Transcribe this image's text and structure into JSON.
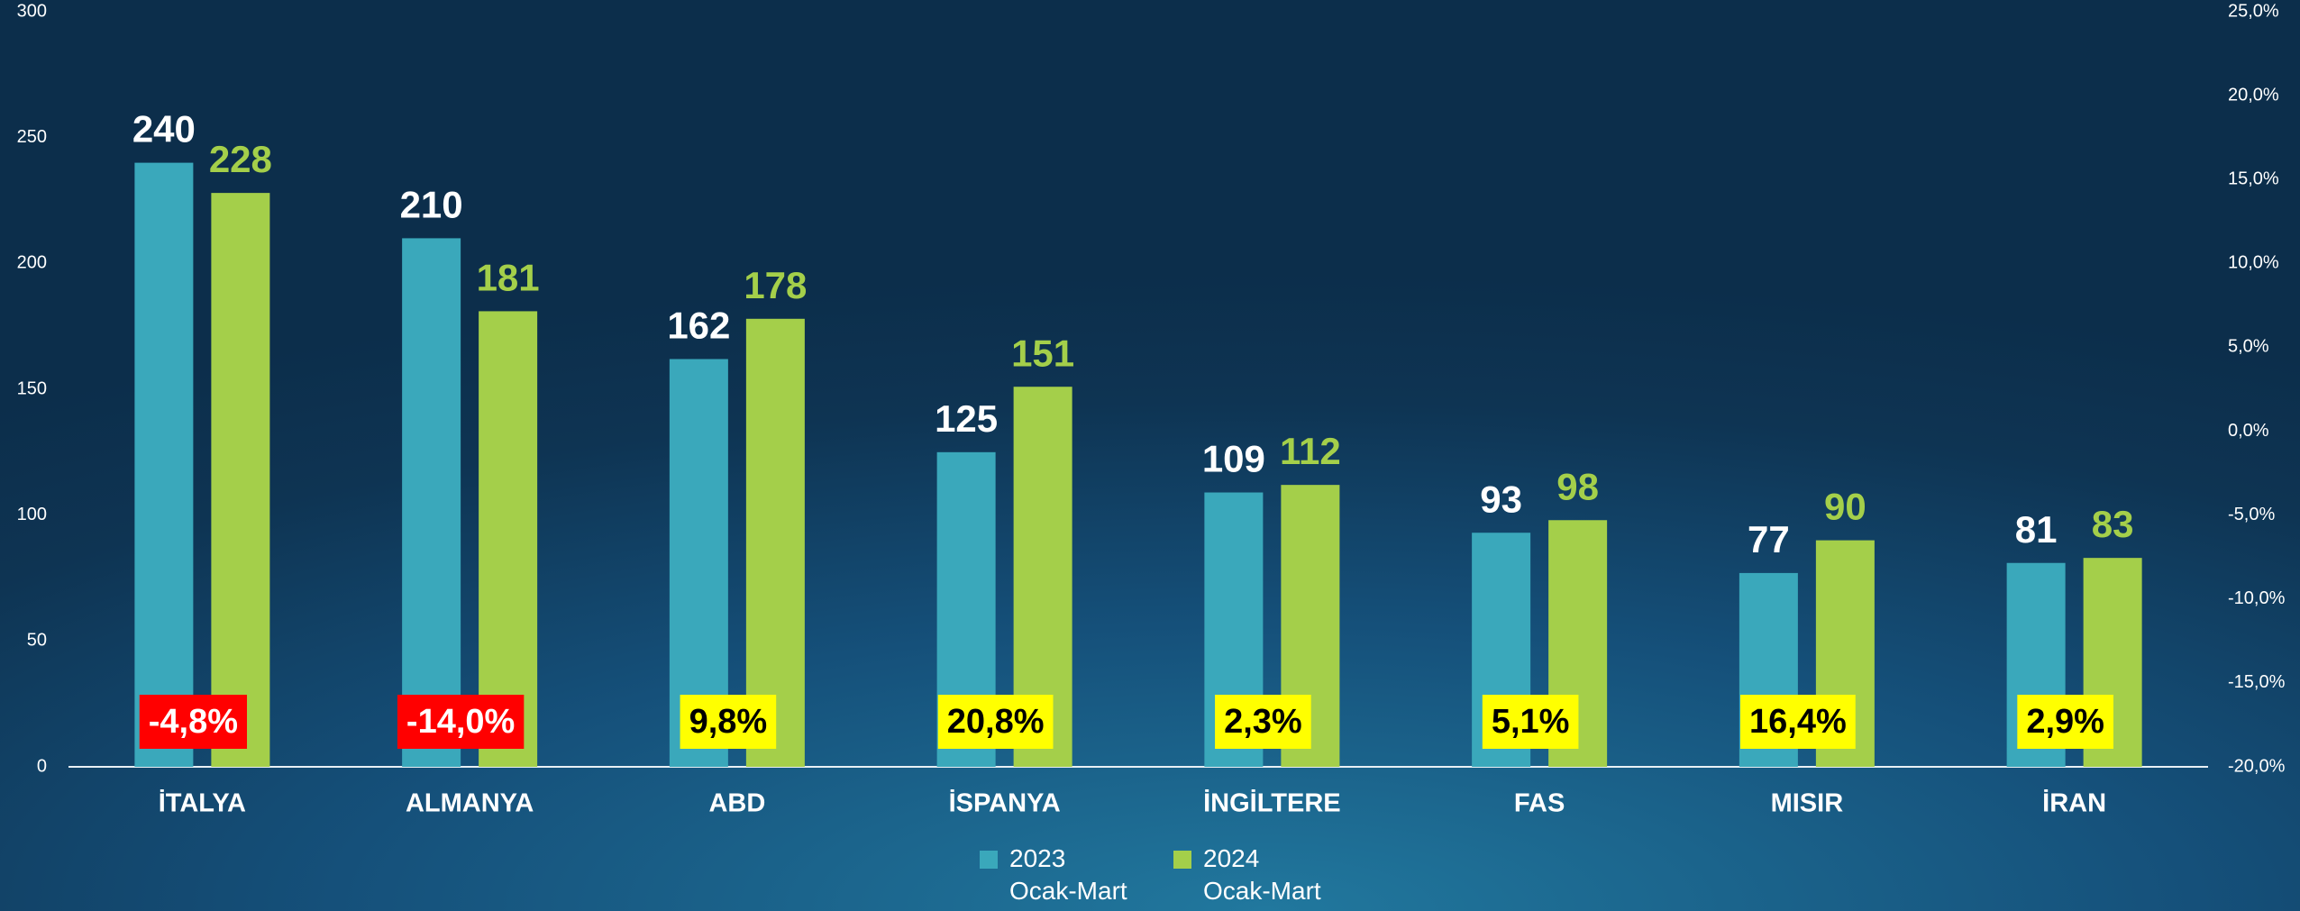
{
  "chart_data": {
    "type": "bar",
    "categories": [
      "İTALYA",
      "ALMANYA",
      "ABD",
      "İSPANYA",
      "İNGİLTERE",
      "FAS",
      "MISIR",
      "İRAN"
    ],
    "series": [
      {
        "name": "2023\nOcak-Mart",
        "color": "#3aa8bb",
        "label_color": "#ffffff",
        "values": [
          240,
          210,
          162,
          125,
          109,
          93,
          77,
          81
        ]
      },
      {
        "name": "2024\nOcak-Mart",
        "color": "#a4cf4a",
        "label_color": "#a4cf4a",
        "values": [
          228,
          181,
          178,
          151,
          112,
          98,
          90,
          83
        ]
      }
    ],
    "change": {
      "values": [
        -4.8,
        -14.0,
        9.8,
        20.8,
        2.3,
        5.1,
        16.4,
        2.9
      ],
      "value_labels": [
        "-4,8%",
        "-14,0%",
        "9,8%",
        "20,8%",
        "2,3%",
        "5,1%",
        "16,4%",
        "2,9%"
      ],
      "negative_color": "#ff0000",
      "positive_color": "#ffff00",
      "negative_text_color": "#ffffff",
      "positive_text_color": "#000000"
    },
    "ylim": [
      0,
      300
    ],
    "yticks": [
      0,
      50,
      100,
      150,
      200,
      250,
      300
    ],
    "y2lim": [
      -20,
      25
    ],
    "y2ticks": [
      {
        "value": -20,
        "label": "-20,0%"
      },
      {
        "value": -15,
        "label": "-15,0%"
      },
      {
        "value": -10,
        "label": "-10,0%"
      },
      {
        "value": -5,
        "label": "-5,0%"
      },
      {
        "value": 0,
        "label": "0,0%"
      },
      {
        "value": 5,
        "label": "5,0%"
      },
      {
        "value": 10,
        "label": "10,0%"
      },
      {
        "value": 15,
        "label": "15,0%"
      },
      {
        "value": 20,
        "label": "20,0%"
      },
      {
        "value": 25,
        "label": "25,0%"
      }
    ],
    "grid": false
  }
}
